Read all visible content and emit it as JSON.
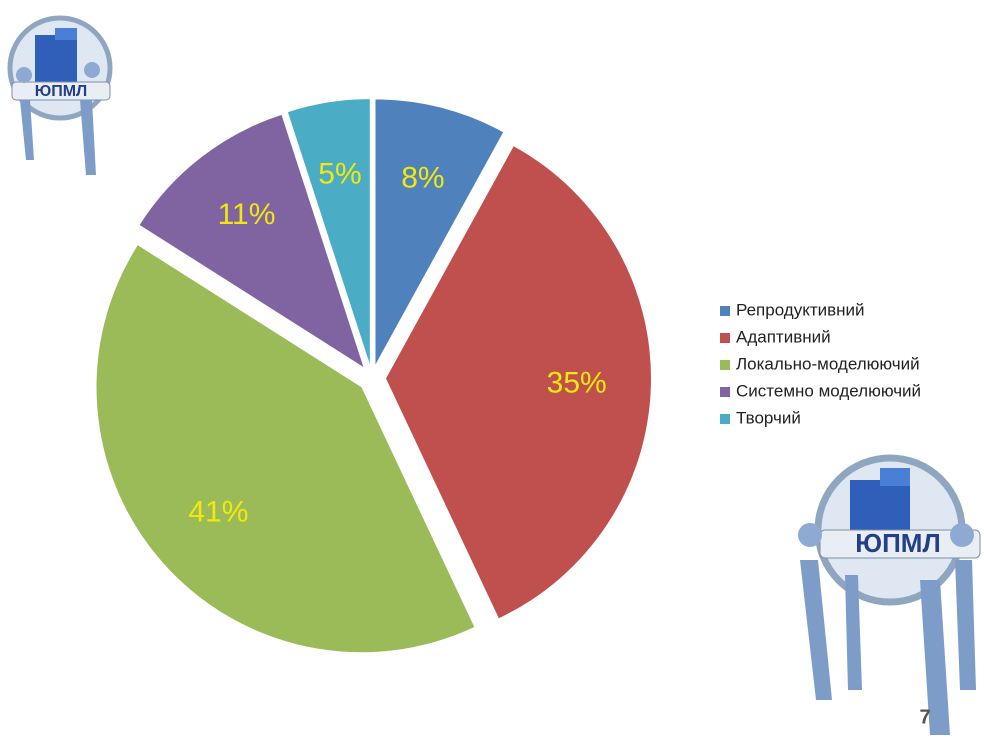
{
  "chart_data": {
    "type": "pie",
    "categories": [
      "Репродуктивний",
      "Адаптивний",
      "Локально-моделюючий",
      "Системно моделюючий",
      "Творчий"
    ],
    "values": [
      8,
      35,
      41,
      11,
      5
    ],
    "value_labels": [
      "8%",
      "35%",
      "41%",
      "11%",
      "5%"
    ],
    "colors": [
      "#4f81bd",
      "#c0504d",
      "#9bbb59",
      "#8064a2",
      "#4bacc6"
    ],
    "label_color": "#f2e80c",
    "legend": "right"
  },
  "slide": {
    "logo_text": "ЮПМЛ",
    "page_number": 7
  }
}
